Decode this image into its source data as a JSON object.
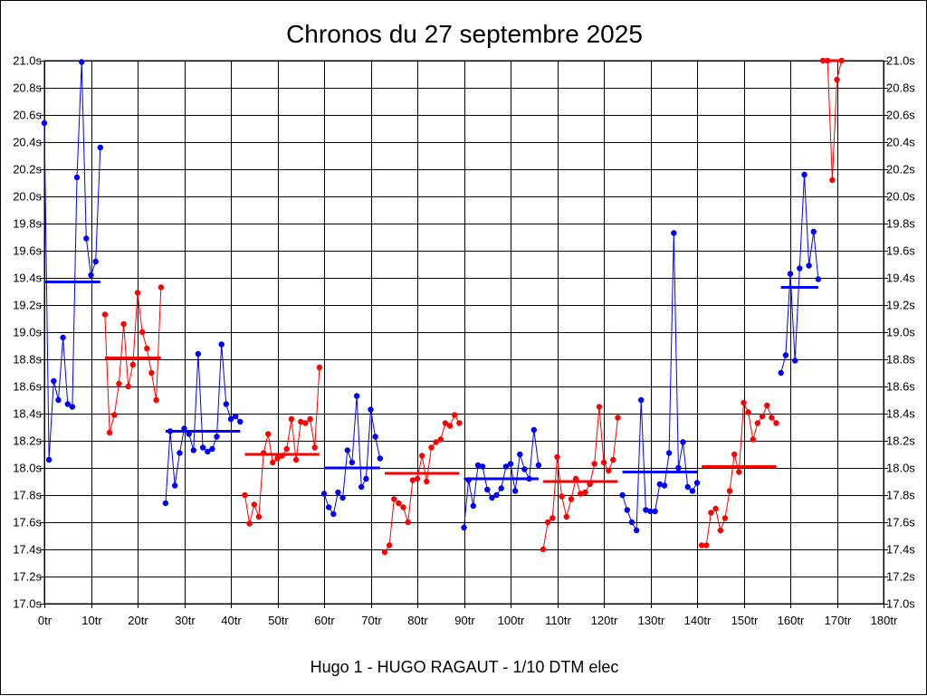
{
  "chart_data": {
    "type": "line",
    "title": "Chronos du 27 septembre 2025",
    "footer": "Hugo 1 - HUGO RAGAUT - 1/10 DTM elec",
    "xlim": [
      0,
      180
    ],
    "ylim": [
      17.0,
      21.0
    ],
    "grid": true,
    "x_ticks": [
      "0tr",
      "10tr",
      "20tr",
      "30tr",
      "40tr",
      "50tr",
      "60tr",
      "70tr",
      "80tr",
      "90tr",
      "100tr",
      "110tr",
      "120tr",
      "130tr",
      "140tr",
      "150tr",
      "160tr",
      "170tr",
      "180tr"
    ],
    "y_ticks": [
      "17.0s",
      "17.2s",
      "17.4s",
      "17.6s",
      "17.8s",
      "18.0s",
      "18.2s",
      "18.4s",
      "18.6s",
      "18.8s",
      "19.0s",
      "19.2s",
      "19.4s",
      "19.6s",
      "19.8s",
      "20.0s",
      "20.2s",
      "20.4s",
      "20.6s",
      "20.8s",
      "21.0s"
    ],
    "colors": {
      "blue": "#0000ff",
      "red": "#ff0000",
      "grid": "#000000"
    },
    "series": [
      {
        "color": "blue",
        "average": 19.37,
        "x": [
          0,
          1,
          2,
          3,
          4,
          5,
          6,
          7,
          8,
          9,
          10,
          11,
          12
        ],
        "y": [
          20.54,
          18.06,
          18.64,
          18.5,
          18.96,
          18.47,
          18.45,
          20.14,
          20.99,
          19.69,
          19.42,
          19.52,
          20.36
        ]
      },
      {
        "color": "red",
        "average": 18.81,
        "x": [
          13,
          14,
          15,
          16,
          17,
          18,
          19,
          20,
          21,
          22,
          23,
          24,
          25
        ],
        "y": [
          19.13,
          18.26,
          18.39,
          18.62,
          19.06,
          18.6,
          18.76,
          19.29,
          19.0,
          18.88,
          18.7,
          18.5,
          19.33
        ]
      },
      {
        "color": "blue",
        "average": 18.27,
        "x": [
          26,
          27,
          28,
          29,
          30,
          31,
          32,
          33,
          34,
          35,
          36,
          37,
          38,
          39,
          40,
          41,
          42
        ],
        "y": [
          17.74,
          18.27,
          17.87,
          18.11,
          18.29,
          18.25,
          18.13,
          18.84,
          18.15,
          18.12,
          18.14,
          18.23,
          18.91,
          18.47,
          18.36,
          18.38,
          18.34
        ]
      },
      {
        "color": "red",
        "average": 18.1,
        "x": [
          43,
          44,
          45,
          46,
          47,
          48,
          49,
          50,
          51,
          52,
          53,
          54,
          55,
          56,
          57,
          58,
          59
        ],
        "y": [
          17.8,
          17.59,
          17.73,
          17.64,
          18.11,
          18.25,
          18.04,
          18.07,
          18.09,
          18.14,
          18.36,
          18.06,
          18.34,
          18.33,
          18.36,
          18.15,
          18.74
        ]
      },
      {
        "color": "blue",
        "average": 18.0,
        "x": [
          60,
          61,
          62,
          63,
          64,
          65,
          66,
          67,
          68,
          69,
          70,
          71,
          72
        ],
        "y": [
          17.81,
          17.71,
          17.66,
          17.82,
          17.78,
          18.13,
          18.04,
          18.53,
          17.86,
          17.92,
          18.43,
          18.23,
          18.07
        ]
      },
      {
        "color": "red",
        "average": 17.96,
        "x": [
          73,
          74,
          75,
          76,
          77,
          78,
          79,
          80,
          81,
          82,
          83,
          84,
          85,
          86,
          87,
          88,
          89
        ],
        "y": [
          17.38,
          17.43,
          17.77,
          17.74,
          17.71,
          17.6,
          17.91,
          17.92,
          18.09,
          17.9,
          18.15,
          18.19,
          18.21,
          18.33,
          18.31,
          18.39,
          18.33
        ]
      },
      {
        "color": "blue",
        "average": 17.92,
        "x": [
          90,
          91,
          92,
          93,
          94,
          95,
          96,
          97,
          98,
          99,
          100,
          101,
          102,
          103,
          104,
          105,
          106
        ],
        "y": [
          17.56,
          17.91,
          17.72,
          18.02,
          18.01,
          17.84,
          17.78,
          17.8,
          17.85,
          18.01,
          18.03,
          17.83,
          18.1,
          17.99,
          17.92,
          18.28,
          18.02
        ]
      },
      {
        "color": "red",
        "average": 17.9,
        "x": [
          107,
          108,
          109,
          110,
          111,
          112,
          113,
          114,
          115,
          116,
          117,
          118,
          119,
          120,
          121,
          122,
          123
        ],
        "y": [
          17.4,
          17.6,
          17.63,
          18.08,
          17.79,
          17.64,
          17.77,
          17.92,
          17.81,
          17.82,
          17.88,
          18.03,
          18.45,
          18.04,
          17.98,
          18.06,
          18.37
        ]
      },
      {
        "color": "blue",
        "average": 17.97,
        "x": [
          124,
          125,
          126,
          127,
          128,
          129,
          130,
          131,
          132,
          133,
          134,
          135,
          136,
          137,
          138,
          139,
          140
        ],
        "y": [
          17.8,
          17.69,
          17.6,
          17.54,
          18.5,
          17.69,
          17.68,
          17.68,
          17.88,
          17.87,
          18.11,
          19.73,
          18.0,
          18.19,
          17.86,
          17.83,
          17.89
        ]
      },
      {
        "color": "red",
        "average": 18.01,
        "x": [
          141,
          142,
          143,
          144,
          145,
          146,
          147,
          148,
          149,
          150,
          151,
          152,
          153,
          154,
          155,
          156,
          157
        ],
        "y": [
          17.43,
          17.43,
          17.67,
          17.7,
          17.54,
          17.63,
          17.83,
          18.1,
          17.97,
          18.48,
          18.41,
          18.21,
          18.33,
          18.38,
          18.46,
          18.37,
          18.33
        ]
      },
      {
        "color": "blue",
        "average": 19.33,
        "x": [
          158,
          159,
          160,
          161,
          162,
          163,
          164,
          165,
          166
        ],
        "y": [
          18.7,
          18.83,
          19.43,
          18.79,
          19.47,
          20.16,
          19.49,
          19.74,
          19.39
        ]
      },
      {
        "color": "red",
        "average": 21.0,
        "x": [
          167,
          168,
          169,
          170,
          171
        ],
        "y": [
          21.0,
          21.0,
          20.12,
          20.86,
          21.0
        ]
      }
    ]
  }
}
